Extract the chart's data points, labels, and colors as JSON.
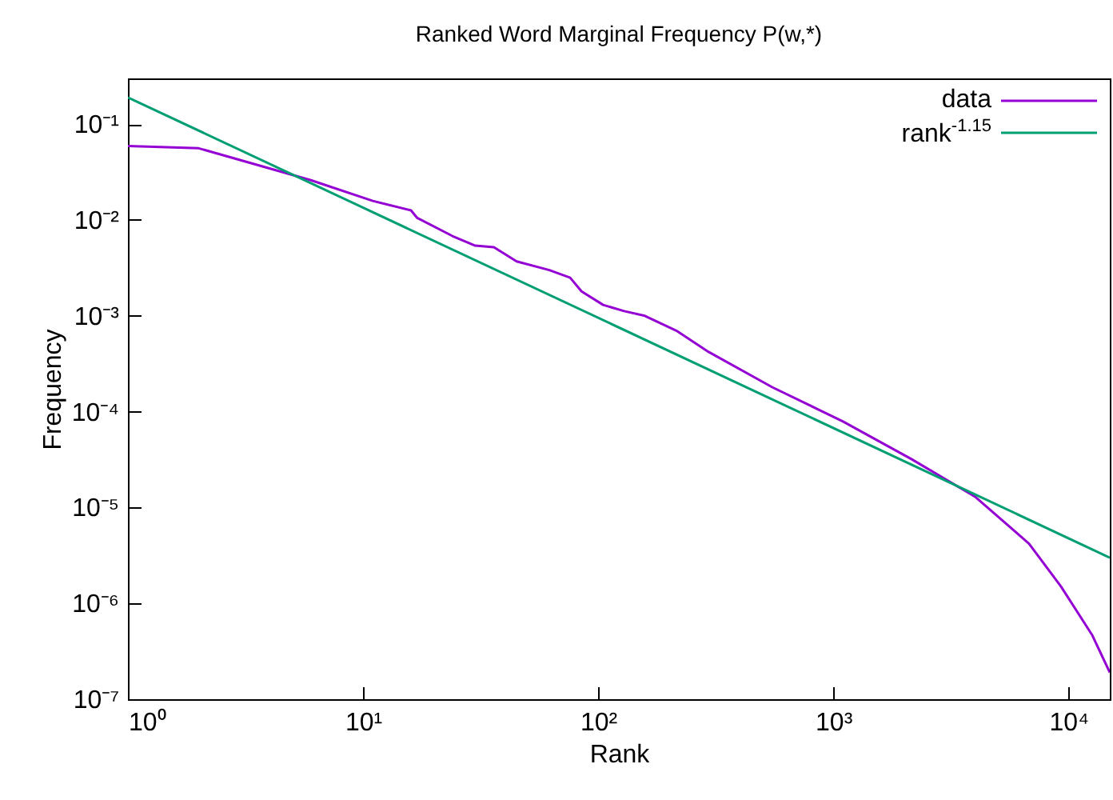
{
  "chart_data": {
    "type": "line",
    "title": "Ranked Word Marginal Frequency P(w,*)",
    "xlabel": "Rank",
    "ylabel": "Frequency",
    "log": "xy",
    "grid": false,
    "legend": "top right",
    "xlim": [
      1,
      15000
    ],
    "ylim": [
      1e-07,
      0.3
    ],
    "xticks": [
      {
        "value": 1,
        "label": "10⁰"
      },
      {
        "value": 10,
        "label": "10¹"
      },
      {
        "value": 100,
        "label": "10²"
      },
      {
        "value": 1000,
        "label": "10³"
      },
      {
        "value": 10000,
        "label": "10⁴"
      }
    ],
    "yticks": [
      {
        "value": 1e-07,
        "label": "10⁻⁷"
      },
      {
        "value": 1e-06,
        "label": "10⁻⁶"
      },
      {
        "value": 1e-05,
        "label": "10⁻⁵"
      },
      {
        "value": 0.0001,
        "label": "10⁻⁴"
      },
      {
        "value": 0.001,
        "label": "10⁻³"
      },
      {
        "value": 0.01,
        "label": "10⁻²"
      },
      {
        "value": 0.1,
        "label": "10⁻¹"
      }
    ],
    "series": [
      {
        "name": "data",
        "color": "#9400d3",
        "x": [
          1,
          2,
          6,
          11,
          16,
          17,
          24,
          30,
          36,
          45,
          62,
          76,
          85,
          105,
          129,
          158,
          215,
          295,
          550,
          1100,
          2150,
          4000,
          6800,
          9300,
          12600,
          15000
        ],
        "values": [
          0.059,
          0.056,
          0.026,
          0.0158,
          0.0126,
          0.0105,
          0.0068,
          0.0054,
          0.0052,
          0.0037,
          0.003,
          0.0025,
          0.0018,
          0.0013,
          0.00112,
          0.001,
          0.0007,
          0.00042,
          0.00018,
          7.9e-05,
          3.2e-05,
          1.3e-05,
          4.2e-06,
          1.5e-06,
          4.7e-07,
          1.9e-07
        ]
      },
      {
        "name": "rank$^{-1.15}$",
        "color": "#009e73",
        "x": [
          1,
          15000
        ],
        "values": [
          0.19,
          3e-06
        ]
      }
    ]
  }
}
